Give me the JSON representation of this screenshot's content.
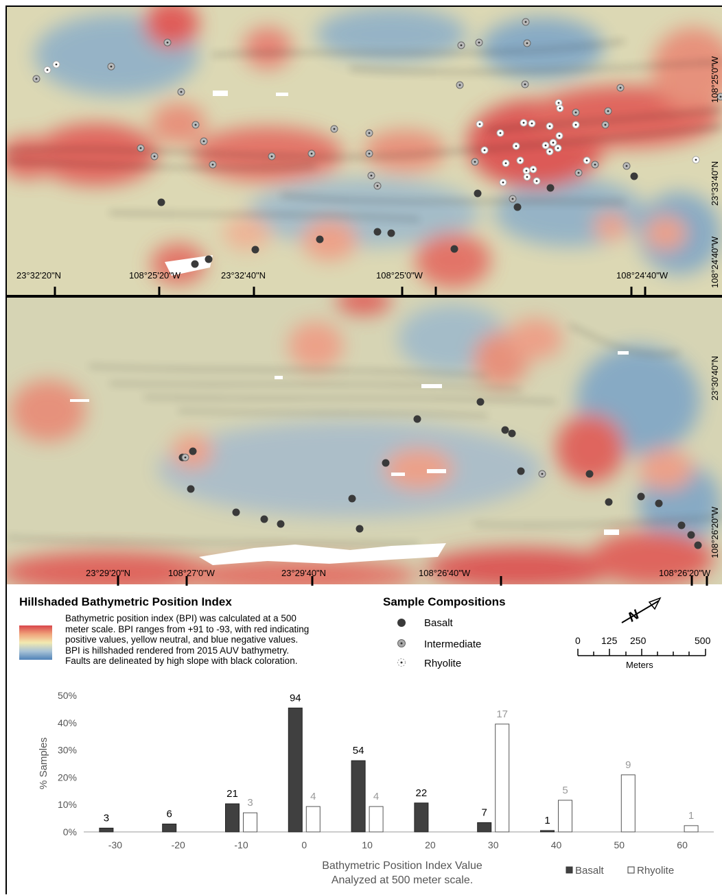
{
  "map_top": {
    "labels": [
      "23°32'20\"N",
      "108°25'20\"W",
      "23°32'40\"N",
      "108°25'0\"W",
      "108°24'40\"W"
    ],
    "right_labels": [
      "108°25'0\"W",
      "23°33'40\"N",
      "108°24'40\"W"
    ]
  },
  "map_bottom": {
    "labels": [
      "23°29'20\"N",
      "108°27'0\"W",
      "23°29'40\"N",
      "108°26'40\"W",
      "108°26'20\"W"
    ],
    "right_labels": [
      "23°30'40\"N",
      "108°26'20\"W"
    ]
  },
  "legend": {
    "title": "Hillshaded Bathymetric Position Index",
    "lines": [
      "Bathymetric position index (BPI) was calculated at a 500",
      "meter scale. BPI ranges from +91 to -93, with red indicating",
      "positive values, yellow neutral, and blue negative values.",
      "BPI is hillshaded rendered from 2015 AUV bathymetry.",
      "Faults are delineated by high slope with black coloration."
    ],
    "ramp_colors": [
      "#d8454a",
      "#f0a27a",
      "#f2e9b0",
      "#a8c3d6",
      "#4f82b8"
    ]
  },
  "samples": {
    "title": "Sample Compositions",
    "items": [
      {
        "label": "Basalt",
        "symbol": "filled-dark-circle"
      },
      {
        "label": "Intermediate",
        "symbol": "grey-dotted-circle"
      },
      {
        "label": "Rhyolite",
        "symbol": "white-dotted-circle"
      }
    ]
  },
  "scale_bar": {
    "ticks": [
      "0",
      "125",
      "250",
      "500"
    ],
    "unit": "Meters",
    "north_arrow": "N"
  },
  "chart_data": {
    "type": "bar",
    "categories": [
      "-30",
      "-20",
      "-10",
      "0",
      "10",
      "20",
      "30",
      "40",
      "50",
      "60"
    ],
    "series": [
      {
        "name": "Basalt",
        "color": "#404040",
        "values": [
          1.4,
          2.9,
          10.3,
          45.4,
          26.1,
          10.6,
          3.4,
          0.5,
          0,
          0
        ],
        "counts": [
          "3",
          "6",
          "21",
          "94",
          "54",
          "22",
          "7",
          "1",
          "",
          ""
        ]
      },
      {
        "name": "Rhyolite",
        "color": "#ffffff",
        "values": [
          0,
          0,
          7.0,
          9.3,
          9.3,
          0,
          39.5,
          11.6,
          20.9,
          2.3
        ],
        "counts": [
          "",
          "",
          "3",
          "4",
          "4",
          "",
          "17",
          "5",
          "9",
          "1"
        ]
      }
    ],
    "ylabel": "% Samples",
    "xlabel": [
      "Bathymetric Position Index Value",
      "Analyzed at 500 meter scale."
    ],
    "ylim": [
      0,
      50
    ],
    "yticks": [
      "0%",
      "10%",
      "20%",
      "30%",
      "40%",
      "50%"
    ],
    "legend_position": "bottom-right"
  }
}
